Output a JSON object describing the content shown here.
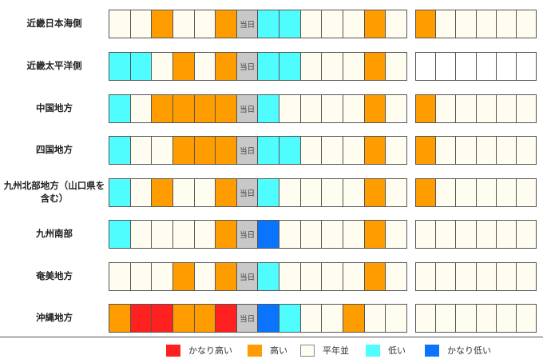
{
  "colors": {
    "veryHigh": "#ff2020",
    "high": "#ff9d00",
    "normal": "#fffdf0",
    "low": "#4ffdff",
    "veryLow": "#0b74ff",
    "today": "#c8c8c8",
    "empty": "#ffffff"
  },
  "today_label": "当日",
  "regions": [
    {
      "name": "近畿日本海側",
      "forecast": [
        "N",
        "N",
        "H",
        "N",
        "N",
        "H",
        "T",
        "L",
        "L",
        "N",
        "N",
        "N",
        "H",
        "N"
      ],
      "extended": [
        "H",
        "N",
        "N",
        "N",
        "N",
        "N"
      ]
    },
    {
      "name": "近畿太平洋側",
      "forecast": [
        "L",
        "L",
        "N",
        "H",
        "N",
        "H",
        "T",
        "L",
        "L",
        "N",
        "N",
        "N",
        "H",
        "N"
      ],
      "extended": [
        "E",
        "E",
        "E",
        "E",
        "E",
        "E"
      ]
    },
    {
      "name": "中国地方",
      "forecast": [
        "L",
        "N",
        "H",
        "H",
        "H",
        "H",
        "T",
        "L",
        "N",
        "N",
        "N",
        "N",
        "H",
        "N"
      ],
      "extended": [
        "H",
        "N",
        "N",
        "N",
        "N",
        "N"
      ]
    },
    {
      "name": "四国地方",
      "forecast": [
        "L",
        "N",
        "N",
        "H",
        "H",
        "H",
        "T",
        "L",
        "L",
        "N",
        "N",
        "N",
        "H",
        "N"
      ],
      "extended": [
        "H",
        "N",
        "N",
        "N",
        "N",
        "N"
      ]
    },
    {
      "name": "九州北部地方（山口県を含む）",
      "forecast": [
        "L",
        "N",
        "H",
        "N",
        "N",
        "H",
        "T",
        "L",
        "N",
        "N",
        "N",
        "N",
        "H",
        "N"
      ],
      "extended": [
        "H",
        "N",
        "N",
        "N",
        "N",
        "N"
      ]
    },
    {
      "name": "九州南部",
      "forecast": [
        "L",
        "N",
        "N",
        "N",
        "N",
        "H",
        "T",
        "VL",
        "N",
        "N",
        "N",
        "N",
        "H",
        "N"
      ],
      "extended": [
        "N",
        "N",
        "N",
        "N",
        "N",
        "N"
      ]
    },
    {
      "name": "奄美地方",
      "forecast": [
        "N",
        "N",
        "N",
        "H",
        "N",
        "H",
        "T",
        "L",
        "N",
        "N",
        "N",
        "N",
        "H",
        "N"
      ],
      "extended": [
        "N",
        "N",
        "N",
        "N",
        "N",
        "N"
      ]
    },
    {
      "name": "沖縄地方",
      "forecast": [
        "H",
        "VH",
        "VH",
        "H",
        "H",
        "VH",
        "T",
        "VL",
        "L",
        "N",
        "N",
        "H",
        "N",
        "N"
      ],
      "extended": [
        "N",
        "N",
        "N",
        "N",
        "N",
        "N"
      ]
    }
  ],
  "legend": [
    {
      "key": "VH",
      "label": "かなり高い"
    },
    {
      "key": "H",
      "label": "高い"
    },
    {
      "key": "N",
      "label": "平年並"
    },
    {
      "key": "L",
      "label": "低い"
    },
    {
      "key": "VL",
      "label": "かなり低い"
    }
  ]
}
